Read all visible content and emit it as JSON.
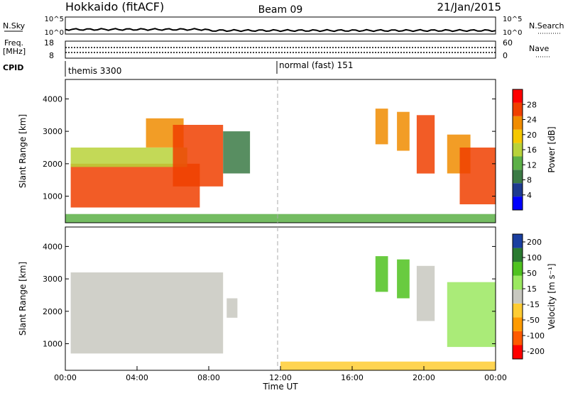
{
  "header": {
    "station": "Hokkaido (fitACF)",
    "beam": "Beam 09",
    "date": "21/Jan/2015"
  },
  "noise_panel": {
    "left_label": "N.Sky",
    "left_ticks": [
      "10^5",
      "10^0"
    ],
    "right_label": "N.Search",
    "right_ticks": [
      "10^5",
      "10^0"
    ]
  },
  "freq_panel": {
    "left_label_1": "Freq.",
    "left_label_2": "[MHz]",
    "left_ticks": [
      "18",
      "8"
    ],
    "right_label": "Nave",
    "right_ticks": [
      "60",
      "0"
    ]
  },
  "cpid_panel": {
    "label": "CPID",
    "modes": [
      {
        "name": "themis 3300",
        "start_hour": 0
      },
      {
        "name": "normal (fast) 151",
        "start_hour": 12
      }
    ]
  },
  "colors": {
    "power_scale": [
      "#0000ff",
      "#1e3a8f",
      "#3b7a45",
      "#5cb047",
      "#b8d23a",
      "#f5c800",
      "#f08c00",
      "#f04000",
      "#ff0000"
    ],
    "velocity_scale": [
      "#ff0000",
      "#ff5a00",
      "#ff9a00",
      "#ffcc33",
      "#c8c8c0",
      "#9be860",
      "#4fc21f",
      "#2a7a30",
      "#1a3fa0"
    ]
  },
  "chart_data": [
    {
      "type": "heatmap",
      "panel": "power",
      "ylabel": "Slant Range [km]",
      "ylim": [
        180,
        4600
      ],
      "xlim": [
        0,
        24
      ],
      "yticks": [
        "1000",
        "2000",
        "3000",
        "4000"
      ],
      "colorbar": {
        "label": "Power [dB]",
        "range": [
          0,
          32
        ],
        "ticks": [
          "4",
          "8",
          "12",
          "16",
          "20",
          "24",
          "28"
        ]
      },
      "echo_regions": [
        {
          "t0": 0.3,
          "t1": 7.5,
          "r0": 650,
          "r1": 2000,
          "power_db": 28
        },
        {
          "t0": 0.3,
          "t1": 6.8,
          "r0": 1900,
          "r1": 2500,
          "power_db": 16
        },
        {
          "t0": 4.5,
          "t1": 6.6,
          "r0": 2500,
          "r1": 3400,
          "power_db": 22
        },
        {
          "t0": 6.0,
          "t1": 8.8,
          "r0": 1300,
          "r1": 3200,
          "power_db": 27
        },
        {
          "t0": 8.8,
          "t1": 10.3,
          "r0": 1700,
          "r1": 3000,
          "power_db": 8
        },
        {
          "t0": 17.3,
          "t1": 18.0,
          "r0": 2600,
          "r1": 3700,
          "power_db": 22
        },
        {
          "t0": 18.5,
          "t1": 19.2,
          "r0": 2400,
          "r1": 3600,
          "power_db": 22
        },
        {
          "t0": 19.6,
          "t1": 20.6,
          "r0": 1700,
          "r1": 3500,
          "power_db": 26
        },
        {
          "t0": 21.3,
          "t1": 22.6,
          "r0": 1700,
          "r1": 2900,
          "power_db": 24
        },
        {
          "t0": 22.0,
          "t1": 24.0,
          "r0": 750,
          "r1": 2500,
          "power_db": 28
        },
        {
          "t0": 0.0,
          "t1": 24.0,
          "r0": 180,
          "r1": 450,
          "power_db": 10
        }
      ]
    },
    {
      "type": "heatmap",
      "panel": "velocity",
      "ylabel": "Slant Range [km]",
      "xlabel": "Time UT",
      "ylim": [
        180,
        4600
      ],
      "xlim": [
        0,
        24
      ],
      "yticks": [
        "1000",
        "2000",
        "3000",
        "4000"
      ],
      "xticks": [
        "00:00",
        "04:00",
        "08:00",
        "12:00",
        "16:00",
        "20:00",
        "00:00"
      ],
      "colorbar": {
        "label": "Velocity [m s⁻¹]",
        "ticks": [
          "200",
          "100",
          "50",
          "15",
          "-15",
          "-50",
          "-100",
          "-200"
        ]
      },
      "echo_regions": [
        {
          "t0": 0.3,
          "t1": 8.8,
          "r0": 700,
          "r1": 3200,
          "velocity": 0
        },
        {
          "t0": 9.0,
          "t1": 9.6,
          "r0": 1800,
          "r1": 2400,
          "velocity": 0
        },
        {
          "t0": 17.3,
          "t1": 18.0,
          "r0": 2600,
          "r1": 3700,
          "velocity": 50
        },
        {
          "t0": 18.5,
          "t1": 19.2,
          "r0": 2400,
          "r1": 3600,
          "velocity": 40
        },
        {
          "t0": 19.6,
          "t1": 20.6,
          "r0": 1700,
          "r1": 3400,
          "velocity": 0
        },
        {
          "t0": 21.3,
          "t1": 24.0,
          "r0": 900,
          "r1": 2900,
          "velocity": 30
        },
        {
          "t0": 12.0,
          "t1": 24.0,
          "r0": 180,
          "r1": 450,
          "velocity": -30
        }
      ]
    }
  ]
}
